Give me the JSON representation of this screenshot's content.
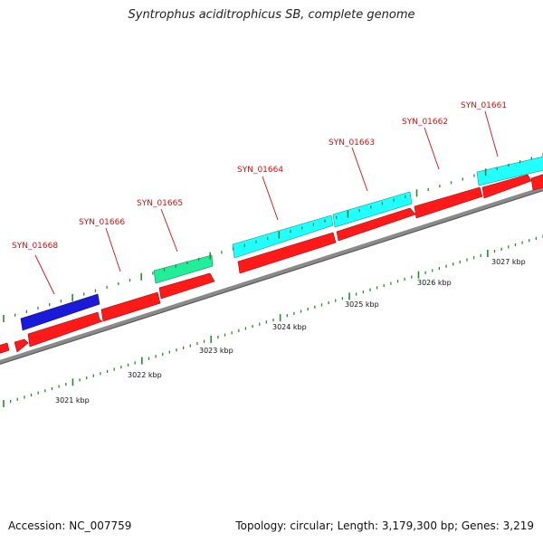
{
  "title": "Syntrophus aciditrophicus SB, complete genome",
  "footer": {
    "accession": "Accession: NC_007759",
    "summary": "Topology: circular; Length: 3,179,300 bp; Genes: 3,219"
  },
  "colors": {
    "cds_red": "#ff1a1a",
    "cds_cyan": "#22ffff",
    "cds_blue": "#1a1ad8",
    "cds_green": "#22ee99",
    "backbone": "#8a8a8a",
    "label_red": "#d01010",
    "tick_green": "#2a8a2a"
  },
  "scale_ticks": [
    "3021 kbp",
    "3022 kbp",
    "3023 kbp",
    "3024 kbp",
    "3025 kbp",
    "3026 kbp",
    "3027 kbp"
  ],
  "gene_labels": [
    "SYN_01668",
    "SYN_01666",
    "SYN_01665",
    "SYN_01664",
    "SYN_01663",
    "SYN_01662",
    "SYN_01661"
  ]
}
